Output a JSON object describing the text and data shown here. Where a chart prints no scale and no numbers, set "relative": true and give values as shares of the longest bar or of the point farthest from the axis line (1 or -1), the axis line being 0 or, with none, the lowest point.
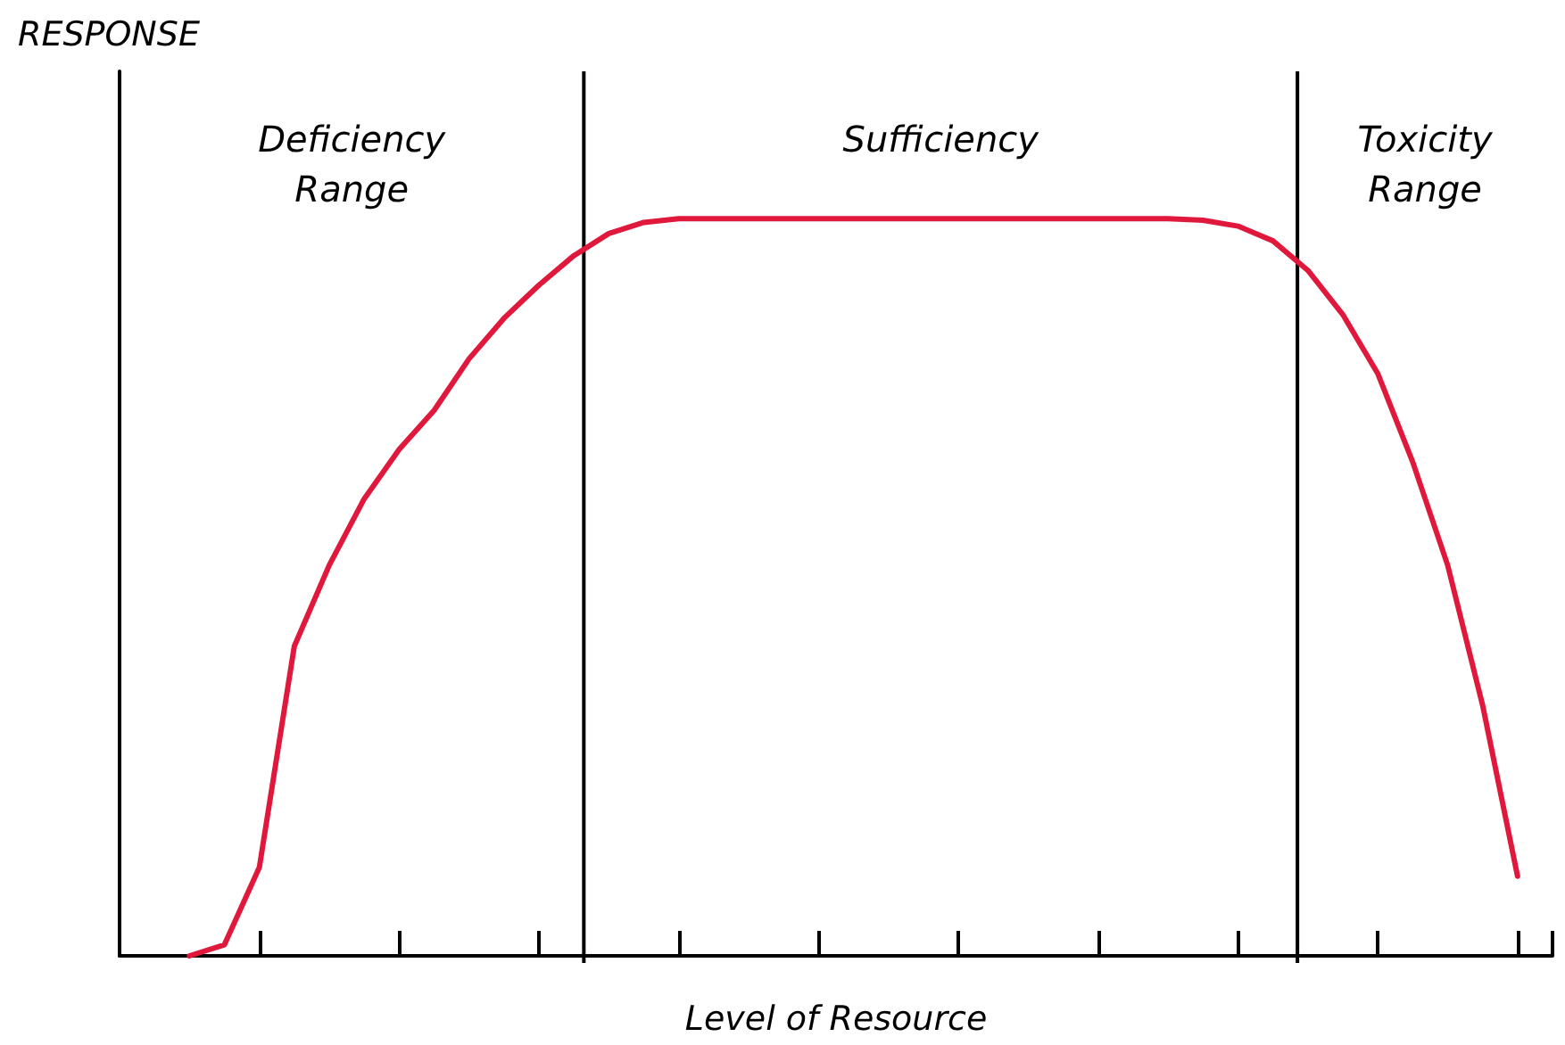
{
  "chart_data": {
    "type": "line",
    "relative": true,
    "xlabel": "Level of Resource",
    "ylabel": "RESPONSE",
    "annotations": [
      "Deficiency\nRange",
      "Sufficiency",
      "Toxicity\nRange"
    ],
    "categories": [
      null,
      null,
      null,
      null,
      null,
      null,
      null,
      null,
      null,
      null,
      null,
      null,
      null,
      null,
      null,
      null,
      null,
      null,
      null,
      null,
      null,
      null,
      null,
      null,
      null,
      null,
      null,
      null,
      null,
      null,
      null,
      null,
      null,
      null,
      null,
      null,
      null,
      null,
      null,
      null,
      null,
      null
    ],
    "series": [
      {
        "color": "#e0193c",
        "values": [
          null,
          null,
          0,
          0.015,
          0.12,
          0.42,
          0.53,
          0.62,
          0.687,
          0.74,
          0.81,
          0.865,
          0.91,
          0.95,
          0.98,
          0.995,
          1,
          1,
          1,
          1,
          1,
          1,
          1,
          1,
          1,
          1,
          1,
          1,
          1,
          1,
          1,
          0.998,
          0.99,
          0.97,
          0.93,
          0.87,
          0.79,
          0.67,
          0.53,
          0.34,
          0.108,
          null
        ]
      }
    ],
    "grid": false,
    "marker": "none",
    "line_style": "solid"
  }
}
